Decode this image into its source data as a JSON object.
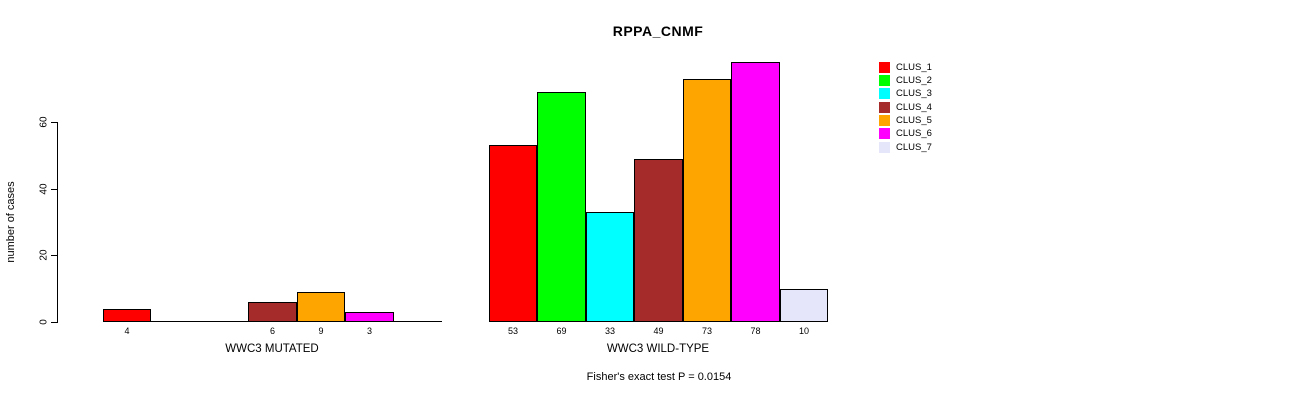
{
  "chart_data": {
    "type": "bar",
    "title": "RPPA_CNMF",
    "ylabel": "number of cases",
    "yticks": [
      0,
      20,
      40,
      60
    ],
    "ylim": [
      0,
      78
    ],
    "grid": false,
    "legend_position": "right",
    "categories": [
      "CLUS_1",
      "CLUS_2",
      "CLUS_3",
      "CLUS_4",
      "CLUS_5",
      "CLUS_6",
      "CLUS_7"
    ],
    "legend": [
      {
        "label": "CLUS_1",
        "color": "#FF0000"
      },
      {
        "label": "CLUS_2",
        "color": "#00FF00"
      },
      {
        "label": "CLUS_3",
        "color": "#00FFFF"
      },
      {
        "label": "CLUS_4",
        "color": "#A52A2A"
      },
      {
        "label": "CLUS_5",
        "color": "#FFA500"
      },
      {
        "label": "CLUS_6",
        "color": "#FF00FF"
      },
      {
        "label": "CLUS_7",
        "color": "#E6E6FA"
      }
    ],
    "groups": [
      {
        "label": "WWC3 MUTATED",
        "values": [
          4,
          0,
          0,
          6,
          9,
          3,
          0
        ]
      },
      {
        "label": "WWC3 WILD-TYPE",
        "values": [
          53,
          69,
          33,
          49,
          73,
          78,
          10
        ]
      }
    ],
    "footer": "Fisher's exact test P = 0.0154"
  }
}
